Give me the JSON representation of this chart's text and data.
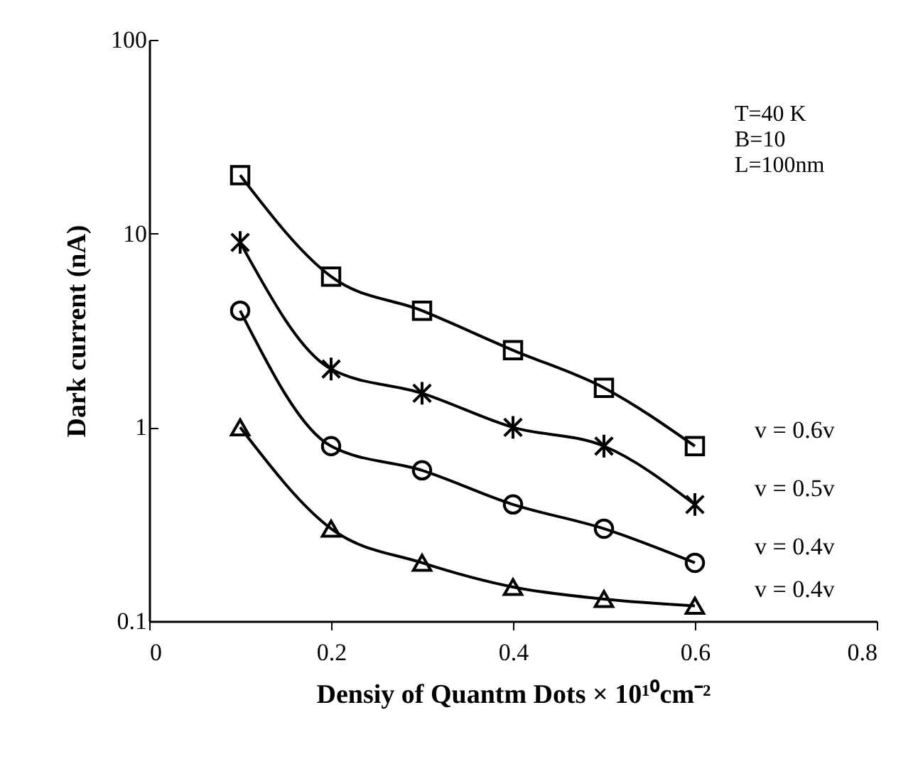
{
  "chart_data": {
    "type": "line",
    "xlabel": "Densiy of Quantm Dots × 10¹⁰cm⁻²",
    "ylabel": "Dark current (nA)",
    "x": [
      0.1,
      0.2,
      0.3,
      0.4,
      0.5,
      0.6
    ],
    "series": [
      {
        "name": "v = 0.6v",
        "color": "#000000",
        "marker": "square",
        "values": [
          20,
          6,
          4,
          2.5,
          1.6,
          0.8
        ]
      },
      {
        "name": "v = 0.5v",
        "color": "#000000",
        "marker": "cross",
        "values": [
          9,
          2,
          1.5,
          1,
          0.8,
          0.4
        ]
      },
      {
        "name": "v = 0.4v",
        "color": "#000000",
        "marker": "circle",
        "values": [
          4,
          0.8,
          0.6,
          0.4,
          0.3,
          0.2
        ]
      },
      {
        "name": "v = 0.4v",
        "color": "#000000",
        "marker": "triangle",
        "values": [
          1,
          0.3,
          0.2,
          0.15,
          0.13,
          0.12
        ]
      }
    ],
    "annotations": [
      "T=40 K",
      "B=10",
      "L=100nm"
    ],
    "xlim": [
      0,
      0.8
    ],
    "xticks": [
      0,
      0.2,
      0.4,
      0.6,
      0.8
    ],
    "ylim": [
      0.1,
      100
    ],
    "yticks": [
      0.1,
      1,
      10,
      100
    ],
    "log": "y",
    "grid": false,
    "legend": false
  }
}
